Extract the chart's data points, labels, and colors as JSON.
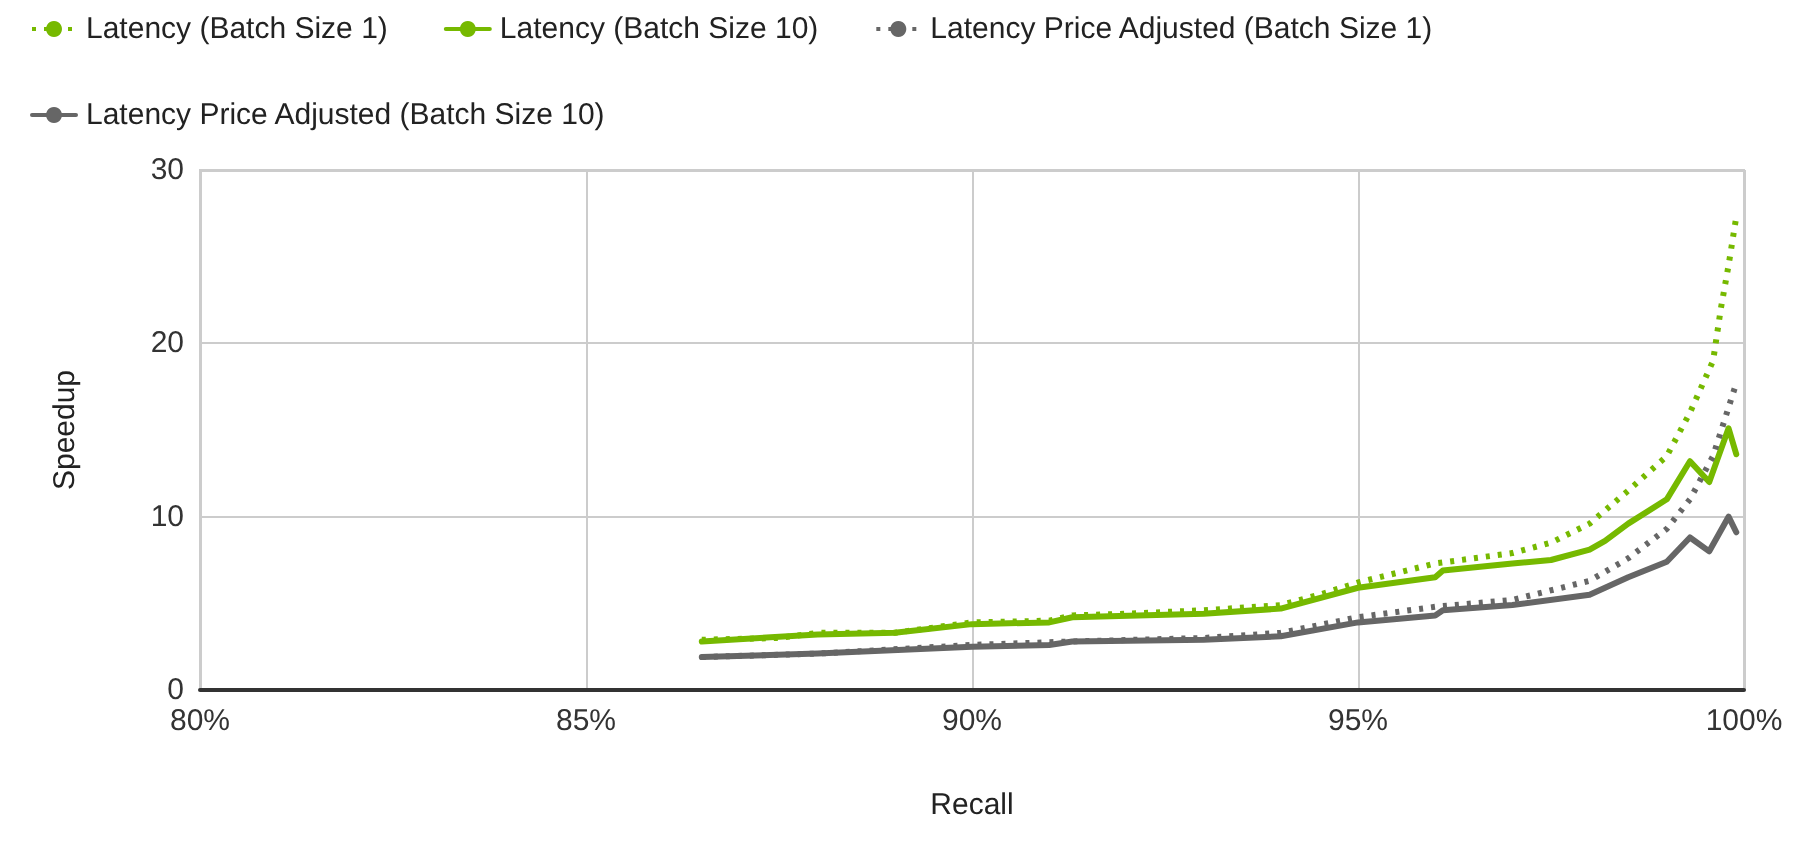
{
  "chart_data": {
    "type": "line",
    "xlabel": "Recall",
    "ylabel": "Speedup",
    "xlim": [
      80,
      100
    ],
    "xticks": [
      {
        "value": 80,
        "label": "80%"
      },
      {
        "value": 85,
        "label": "85%"
      },
      {
        "value": 90,
        "label": "90%"
      },
      {
        "value": 95,
        "label": "95%"
      },
      {
        "value": 100,
        "label": "100%"
      }
    ],
    "ylim": [
      0,
      30
    ],
    "yticks": [
      0,
      10,
      20,
      30
    ],
    "grid": true,
    "legend": "top",
    "marker": "none",
    "series": [
      {
        "name": "Latency (Batch Size 1)",
        "color": "#76b900",
        "line_style": "dotted",
        "x": [
          86.5,
          87.5,
          88,
          89,
          89.5,
          90,
          91,
          91.3,
          92,
          93,
          94,
          94.5,
          95,
          96,
          97,
          97.5,
          98,
          98.5,
          99,
          99.3,
          99.6,
          99.7,
          99.8,
          99.9
        ],
        "values": [
          2.9,
          3.0,
          3.3,
          3.3,
          3.6,
          3.9,
          4.0,
          4.3,
          4.4,
          4.6,
          4.9,
          5.5,
          6.2,
          7.3,
          7.9,
          8.5,
          9.6,
          11.5,
          13.5,
          16,
          19,
          22,
          24.5,
          27.3
        ]
      },
      {
        "name": "Latency (Batch Size 10)",
        "color": "#76b900",
        "line_style": "solid",
        "x": [
          86.5,
          88,
          89,
          90,
          91,
          91.3,
          93,
          94,
          95,
          96,
          96.1,
          97,
          97.5,
          98,
          98.2,
          98.5,
          99,
          99.3,
          99.55,
          99.8,
          99.9
        ],
        "values": [
          2.8,
          3.2,
          3.3,
          3.8,
          3.9,
          4.2,
          4.4,
          4.7,
          5.9,
          6.5,
          6.9,
          7.3,
          7.5,
          8.1,
          8.6,
          9.6,
          11.0,
          13.2,
          12.0,
          15.1,
          13.6
        ]
      },
      {
        "name": "Latency Price Adjusted (Batch Size 1)",
        "color": "#666666",
        "line_style": "dotted",
        "x": [
          86.5,
          88,
          90,
          91.3,
          93,
          94,
          95,
          96,
          97,
          98,
          98.5,
          99,
          99.3,
          99.6,
          99.9
        ],
        "values": [
          1.9,
          2.1,
          2.6,
          2.8,
          3.0,
          3.3,
          4.2,
          4.8,
          5.2,
          6.3,
          7.6,
          9.3,
          11,
          13.5,
          17.7
        ]
      },
      {
        "name": "Latency Price Adjusted (Batch Size 10)",
        "color": "#666666",
        "line_style": "solid",
        "x": [
          86.5,
          88,
          90,
          91,
          91.3,
          93,
          94,
          95,
          96,
          96.1,
          97,
          98,
          98.2,
          98.5,
          99,
          99.3,
          99.55,
          99.8,
          99.9
        ],
        "values": [
          1.9,
          2.1,
          2.5,
          2.6,
          2.8,
          2.9,
          3.1,
          3.9,
          4.3,
          4.6,
          4.9,
          5.5,
          5.9,
          6.5,
          7.4,
          8.8,
          8.0,
          10.0,
          9.1
        ]
      }
    ]
  }
}
